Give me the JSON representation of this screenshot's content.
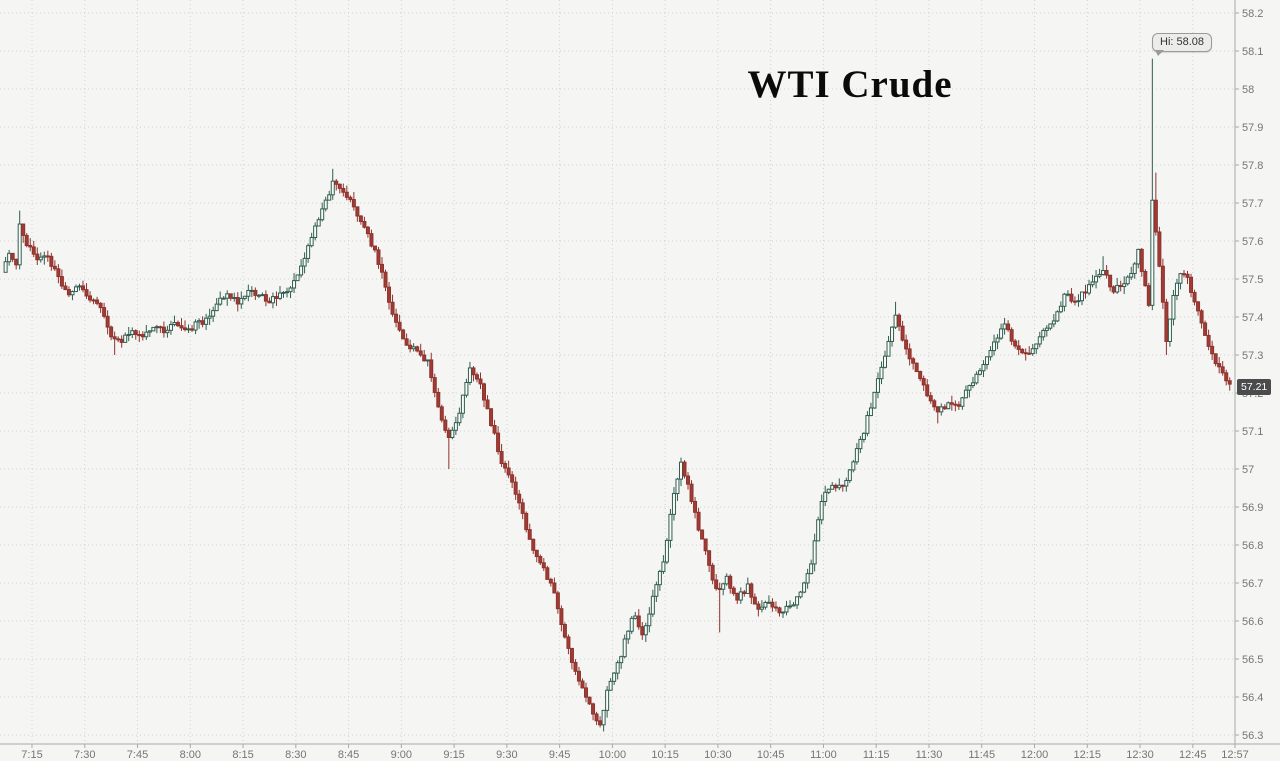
{
  "chart_data": {
    "type": "candlestick",
    "title": "WTI Crude",
    "hi_label": "Hi: 58.08",
    "last_price_label": "57.21",
    "high": 58.08,
    "low": 56.32,
    "close": 57.21,
    "ylim": [
      56.3,
      58.2
    ],
    "ystep": 0.1,
    "grid": "dotted",
    "x_ticks": [
      "7:15",
      "7:30",
      "7:45",
      "8:00",
      "8:15",
      "8:30",
      "8:45",
      "9:00",
      "9:15",
      "9:30",
      "9:45",
      "10:00",
      "10:15",
      "10:30",
      "10:45",
      "11:00",
      "11:15",
      "11:30",
      "11:45",
      "12:00",
      "12:15",
      "12:30",
      "12:45",
      "12:57"
    ],
    "session_start": "7:07",
    "session_end": "12:57",
    "path": [
      [
        "7:07",
        57.52
      ],
      [
        "7:09",
        57.56
      ],
      [
        "7:11",
        57.54
      ],
      [
        "7:12",
        57.64
      ],
      [
        "7:14",
        57.59
      ],
      [
        "7:17",
        57.55
      ],
      [
        "7:20",
        57.56
      ],
      [
        "7:23",
        57.5
      ],
      [
        "7:26",
        57.46
      ],
      [
        "7:29",
        57.48
      ],
      [
        "7:32",
        57.45
      ],
      [
        "7:35",
        57.43
      ],
      [
        "7:38",
        57.35
      ],
      [
        "7:41",
        57.34
      ],
      [
        "7:44",
        57.37
      ],
      [
        "7:47",
        57.34
      ],
      [
        "7:50",
        57.38
      ],
      [
        "7:53",
        57.36
      ],
      [
        "7:56",
        57.39
      ],
      [
        "7:59",
        57.36
      ],
      [
        "8:02",
        57.38
      ],
      [
        "8:05",
        57.39
      ],
      [
        "8:08",
        57.44
      ],
      [
        "8:11",
        57.46
      ],
      [
        "8:14",
        57.44
      ],
      [
        "8:17",
        57.47
      ],
      [
        "8:20",
        57.46
      ],
      [
        "8:23",
        57.44
      ],
      [
        "8:26",
        57.46
      ],
      [
        "8:29",
        57.47
      ],
      [
        "8:32",
        57.53
      ],
      [
        "8:35",
        57.61
      ],
      [
        "8:38",
        57.68
      ],
      [
        "8:41",
        57.75
      ],
      [
        "8:44",
        57.73
      ],
      [
        "8:47",
        57.69
      ],
      [
        "8:50",
        57.64
      ],
      [
        "8:53",
        57.57
      ],
      [
        "8:56",
        57.48
      ],
      [
        "8:59",
        57.38
      ],
      [
        "9:02",
        57.33
      ],
      [
        "9:05",
        57.31
      ],
      [
        "9:08",
        57.28
      ],
      [
        "9:11",
        57.16
      ],
      [
        "9:14",
        57.08
      ],
      [
        "9:17",
        57.15
      ],
      [
        "9:20",
        57.26
      ],
      [
        "9:23",
        57.22
      ],
      [
        "9:26",
        57.12
      ],
      [
        "9:29",
        57.02
      ],
      [
        "9:32",
        56.96
      ],
      [
        "9:35",
        56.88
      ],
      [
        "9:38",
        56.78
      ],
      [
        "9:41",
        56.74
      ],
      [
        "9:44",
        56.67
      ],
      [
        "9:47",
        56.55
      ],
      [
        "9:50",
        56.47
      ],
      [
        "9:53",
        56.4
      ],
      [
        "9:55",
        56.36
      ],
      [
        "9:57",
        56.33
      ],
      [
        "9:59",
        56.41
      ],
      [
        "10:01",
        56.46
      ],
      [
        "10:03",
        56.51
      ],
      [
        "10:05",
        56.58
      ],
      [
        "10:07",
        56.62
      ],
      [
        "10:09",
        56.56
      ],
      [
        "10:11",
        56.62
      ],
      [
        "10:13",
        56.7
      ],
      [
        "10:15",
        56.76
      ],
      [
        "10:17",
        56.88
      ],
      [
        "10:19",
        56.98
      ],
      [
        "10:20",
        57.01
      ],
      [
        "10:22",
        56.96
      ],
      [
        "10:24",
        56.88
      ],
      [
        "10:27",
        56.78
      ],
      [
        "10:30",
        56.68
      ],
      [
        "10:33",
        56.71
      ],
      [
        "10:36",
        56.66
      ],
      [
        "10:39",
        56.69
      ],
      [
        "10:42",
        56.63
      ],
      [
        "10:45",
        56.65
      ],
      [
        "10:48",
        56.62
      ],
      [
        "10:51",
        56.64
      ],
      [
        "10:54",
        56.67
      ],
      [
        "10:57",
        56.75
      ],
      [
        "11:00",
        56.92
      ],
      [
        "11:03",
        56.96
      ],
      [
        "11:06",
        56.95
      ],
      [
        "11:09",
        57.02
      ],
      [
        "11:12",
        57.1
      ],
      [
        "11:15",
        57.2
      ],
      [
        "11:18",
        57.3
      ],
      [
        "11:21",
        57.4
      ],
      [
        "11:24",
        57.32
      ],
      [
        "11:27",
        57.25
      ],
      [
        "11:30",
        57.2
      ],
      [
        "11:33",
        57.15
      ],
      [
        "11:36",
        57.17
      ],
      [
        "11:39",
        57.16
      ],
      [
        "11:42",
        57.22
      ],
      [
        "11:45",
        57.26
      ],
      [
        "11:48",
        57.31
      ],
      [
        "11:52",
        57.38
      ],
      [
        "11:55",
        57.32
      ],
      [
        "11:58",
        57.3
      ],
      [
        "12:01",
        57.33
      ],
      [
        "12:04",
        57.37
      ],
      [
        "12:07",
        57.41
      ],
      [
        "12:09",
        57.46
      ],
      [
        "12:12",
        57.44
      ],
      [
        "12:15",
        57.47
      ],
      [
        "12:18",
        57.5
      ],
      [
        "12:20",
        57.52
      ],
      [
        "12:23",
        57.47
      ],
      [
        "12:26",
        57.49
      ],
      [
        "12:28",
        57.52
      ],
      [
        "12:30",
        57.57
      ],
      [
        "12:32",
        57.48
      ],
      [
        "12:33",
        57.43
      ],
      [
        "12:34",
        57.7
      ],
      [
        "12:35",
        57.62
      ],
      [
        "12:36",
        57.53
      ],
      [
        "12:38",
        57.34
      ],
      [
        "12:40",
        57.45
      ],
      [
        "12:42",
        57.52
      ],
      [
        "12:44",
        57.5
      ],
      [
        "12:46",
        57.44
      ],
      [
        "12:48",
        57.38
      ],
      [
        "12:50",
        57.33
      ],
      [
        "12:52",
        57.28
      ],
      [
        "12:54",
        57.25
      ],
      [
        "12:56",
        57.23
      ],
      [
        "12:57",
        57.21
      ]
    ],
    "wick_overrides": [
      {
        "time": "7:12",
        "high": 57.68
      },
      {
        "time": "7:39",
        "low": 57.3
      },
      {
        "time": "8:41",
        "high": 57.79
      },
      {
        "time": "9:14",
        "low": 57.0
      },
      {
        "time": "9:57",
        "low": 56.32
      },
      {
        "time": "10:20",
        "high": 57.03
      },
      {
        "time": "10:31",
        "low": 56.57
      },
      {
        "time": "11:21",
        "high": 57.44
      },
      {
        "time": "11:33",
        "low": 57.12
      },
      {
        "time": "12:20",
        "high": 57.56
      },
      {
        "time": "12:30",
        "high": 57.58
      },
      {
        "time": "12:34",
        "high": 58.08
      },
      {
        "time": "12:35",
        "high": 57.78
      },
      {
        "time": "12:38",
        "low": 57.3
      }
    ],
    "colors": {
      "background": "#f5f5f3",
      "grid": "#d2d2d0",
      "axis_line": "#a9a9a7",
      "axis_text": "#757575",
      "up_stroke": "#2f5d50",
      "up_fill": "#fbfbf9",
      "down_stroke": "#8d332d",
      "down_fill": "#a23b35",
      "title_text": "#0b0b0b",
      "last_badge_bg": "#4a4b4c",
      "last_badge_text": "#ffffff",
      "tooltip_bg": "#ececea",
      "tooltip_border": "#9a9a98",
      "tooltip_text": "#333333"
    }
  }
}
